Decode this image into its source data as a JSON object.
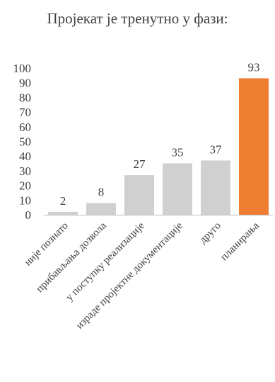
{
  "chart_data": {
    "type": "bar",
    "title": "Пројекат је тренутно у фази:",
    "categories": [
      "није познато",
      "прибављања дозвола",
      "у поступку реализације",
      "израде пројектне документације",
      "друго",
      "планирања"
    ],
    "values": [
      2,
      8,
      27,
      35,
      37,
      93
    ],
    "ylim": [
      0,
      100
    ],
    "yticks": [
      0,
      10,
      20,
      30,
      40,
      50,
      60,
      70,
      80,
      90,
      100
    ],
    "grid": false,
    "legend": "none",
    "colors": {
      "default_bar": "#d0d0d0",
      "highlight_bar": "#ed7d31",
      "axis": "#bfbfbf",
      "text": "#404040"
    },
    "highlight_index": 5
  }
}
